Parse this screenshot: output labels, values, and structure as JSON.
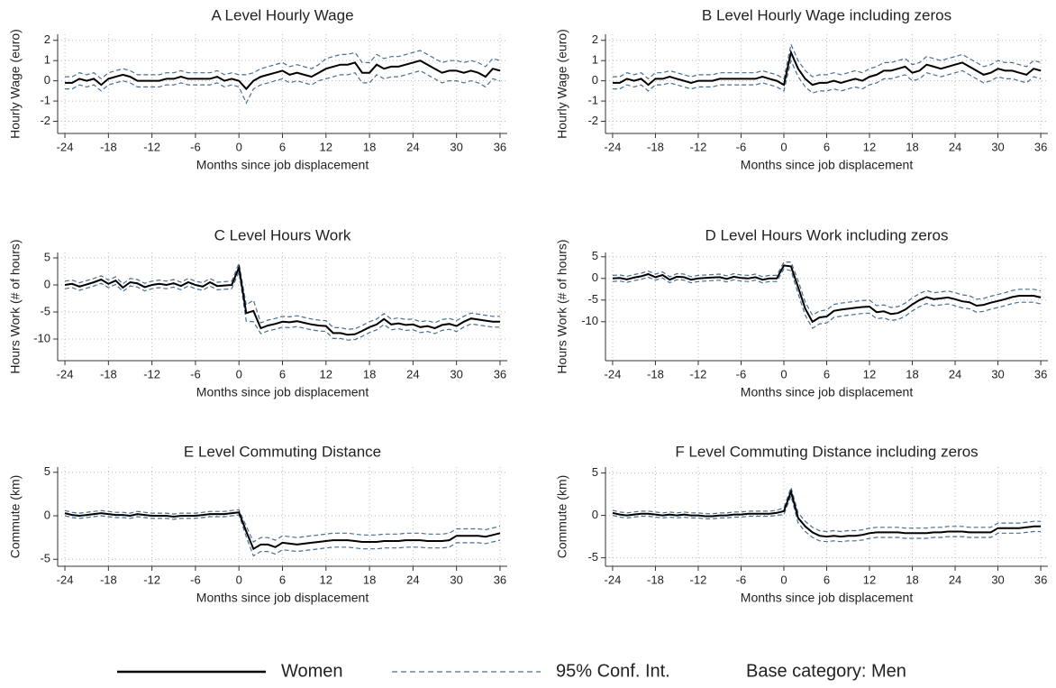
{
  "chart_data": [
    {
      "type": "line",
      "title": "A Level Hourly Wage",
      "xlabel": "Months since job displacement",
      "ylabel": "Hourly Wage (euro)",
      "x": [
        -24,
        -23,
        -22,
        -21,
        -20,
        -19,
        -18,
        -17,
        -16,
        -15,
        -14,
        -13,
        -12,
        -11,
        -10,
        -9,
        -8,
        -7,
        -6,
        -5,
        -4,
        -3,
        -2,
        -1,
        0,
        1,
        2,
        3,
        4,
        5,
        6,
        7,
        8,
        9,
        10,
        11,
        12,
        13,
        14,
        15,
        16,
        17,
        18,
        19,
        20,
        21,
        22,
        23,
        24,
        25,
        26,
        27,
        28,
        29,
        30,
        31,
        32,
        33,
        34,
        35,
        36
      ],
      "values": [
        -0.1,
        -0.1,
        0.1,
        0.0,
        0.1,
        -0.2,
        0.1,
        0.2,
        0.3,
        0.2,
        0.0,
        0.0,
        0.0,
        0.0,
        0.1,
        0.1,
        0.2,
        0.1,
        0.1,
        0.1,
        0.1,
        0.2,
        0.0,
        0.1,
        0.0,
        -0.4,
        0.0,
        0.2,
        0.3,
        0.4,
        0.5,
        0.3,
        0.4,
        0.3,
        0.2,
        0.4,
        0.6,
        0.7,
        0.8,
        0.8,
        0.9,
        0.4,
        0.4,
        0.8,
        0.6,
        0.7,
        0.7,
        0.8,
        0.9,
        1.0,
        0.8,
        0.6,
        0.4,
        0.5,
        0.5,
        0.4,
        0.5,
        0.4,
        0.2,
        0.6,
        0.5
      ],
      "ci": [
        0.3,
        0.3,
        0.3,
        0.3,
        0.3,
        0.3,
        0.3,
        0.3,
        0.3,
        0.3,
        0.3,
        0.3,
        0.3,
        0.3,
        0.3,
        0.3,
        0.3,
        0.3,
        0.3,
        0.3,
        0.3,
        0.3,
        0.3,
        0.3,
        0.3,
        0.7,
        0.4,
        0.4,
        0.4,
        0.4,
        0.4,
        0.4,
        0.4,
        0.4,
        0.4,
        0.4,
        0.5,
        0.5,
        0.5,
        0.5,
        0.5,
        0.5,
        0.5,
        0.5,
        0.5,
        0.5,
        0.5,
        0.5,
        0.5,
        0.5,
        0.5,
        0.5,
        0.5,
        0.5,
        0.5,
        0.5,
        0.5,
        0.5,
        0.5,
        0.5,
        0.5
      ],
      "xlim": [
        -25,
        37
      ],
      "ylim": [
        -2.6,
        2.3
      ],
      "xticks": [
        -24,
        -18,
        -12,
        -6,
        0,
        6,
        12,
        18,
        24,
        30,
        36
      ],
      "yticks": [
        2,
        1,
        0,
        -1,
        -2
      ],
      "grid": true
    },
    {
      "type": "line",
      "title": "B Level Hourly Wage including zeros",
      "xlabel": "Months since job displacement",
      "ylabel": "Hourly Wage (euro)",
      "x": [
        -24,
        -23,
        -22,
        -21,
        -20,
        -19,
        -18,
        -17,
        -16,
        -15,
        -14,
        -13,
        -12,
        -11,
        -10,
        -9,
        -8,
        -7,
        -6,
        -5,
        -4,
        -3,
        -2,
        -1,
        0,
        1,
        2,
        3,
        4,
        5,
        6,
        7,
        8,
        9,
        10,
        11,
        12,
        13,
        14,
        15,
        16,
        17,
        18,
        19,
        20,
        21,
        22,
        23,
        24,
        25,
        26,
        27,
        28,
        29,
        30,
        31,
        32,
        33,
        34,
        35,
        36
      ],
      "values": [
        -0.1,
        -0.1,
        0.1,
        0.0,
        0.1,
        -0.2,
        0.1,
        0.1,
        0.2,
        0.1,
        0.0,
        -0.1,
        0.0,
        0.0,
        0.0,
        0.1,
        0.1,
        0.1,
        0.1,
        0.1,
        0.1,
        0.2,
        0.1,
        0.0,
        -0.2,
        1.4,
        0.6,
        0.1,
        -0.2,
        -0.1,
        -0.1,
        0.0,
        -0.1,
        0.0,
        0.1,
        0.0,
        0.2,
        0.3,
        0.5,
        0.5,
        0.6,
        0.7,
        0.4,
        0.5,
        0.8,
        0.7,
        0.6,
        0.7,
        0.8,
        0.9,
        0.7,
        0.5,
        0.3,
        0.4,
        0.6,
        0.5,
        0.5,
        0.4,
        0.3,
        0.6,
        0.5
      ],
      "ci": [
        0.3,
        0.3,
        0.3,
        0.3,
        0.3,
        0.3,
        0.3,
        0.3,
        0.3,
        0.3,
        0.3,
        0.3,
        0.3,
        0.3,
        0.3,
        0.3,
        0.3,
        0.3,
        0.3,
        0.3,
        0.3,
        0.3,
        0.3,
        0.3,
        0.3,
        0.4,
        0.4,
        0.4,
        0.4,
        0.4,
        0.4,
        0.4,
        0.4,
        0.4,
        0.4,
        0.4,
        0.4,
        0.4,
        0.4,
        0.4,
        0.4,
        0.4,
        0.4,
        0.4,
        0.4,
        0.4,
        0.4,
        0.4,
        0.4,
        0.4,
        0.4,
        0.4,
        0.4,
        0.4,
        0.4,
        0.4,
        0.4,
        0.4,
        0.4,
        0.4,
        0.4
      ],
      "xlim": [
        -25,
        37
      ],
      "ylim": [
        -2.6,
        2.3
      ],
      "xticks": [
        -24,
        -18,
        -12,
        -6,
        0,
        6,
        12,
        18,
        24,
        30,
        36
      ],
      "yticks": [
        2,
        1,
        0,
        -1,
        -2
      ],
      "grid": true
    },
    {
      "type": "line",
      "title": "C Level Hours Work",
      "xlabel": "Months since job displacement",
      "ylabel": "Hours Work (# of hours)",
      "x": [
        -24,
        -23,
        -22,
        -21,
        -20,
        -19,
        -18,
        -17,
        -16,
        -15,
        -14,
        -13,
        -12,
        -11,
        -10,
        -9,
        -8,
        -7,
        -6,
        -5,
        -4,
        -3,
        -2,
        -1,
        0,
        1,
        2,
        3,
        4,
        5,
        6,
        7,
        8,
        9,
        10,
        11,
        12,
        13,
        14,
        15,
        16,
        17,
        18,
        19,
        20,
        21,
        22,
        23,
        24,
        25,
        26,
        27,
        28,
        29,
        30,
        31,
        32,
        33,
        34,
        35,
        36
      ],
      "values": [
        0.0,
        0.2,
        -0.3,
        0.1,
        0.5,
        1.0,
        0.2,
        0.8,
        -0.5,
        0.5,
        0.3,
        -0.4,
        0.0,
        0.2,
        0.0,
        0.3,
        -0.2,
        0.5,
        0.0,
        -0.3,
        0.5,
        -0.2,
        -0.1,
        0.0,
        3.2,
        -5.2,
        -4.8,
        -8.0,
        -7.5,
        -7.2,
        -6.8,
        -6.9,
        -6.7,
        -7.0,
        -7.3,
        -7.5,
        -7.6,
        -8.9,
        -8.9,
        -9.2,
        -9.1,
        -8.5,
        -7.8,
        -7.3,
        -6.3,
        -7.3,
        -7.1,
        -7.4,
        -7.3,
        -7.8,
        -7.6,
        -8.0,
        -7.4,
        -7.2,
        -7.6,
        -6.8,
        -6.2,
        -6.4,
        -6.6,
        -6.8,
        -6.8
      ],
      "ci": [
        0.7,
        0.7,
        0.7,
        0.7,
        0.7,
        0.7,
        0.7,
        0.7,
        0.7,
        0.7,
        0.7,
        0.7,
        0.7,
        0.7,
        0.7,
        0.7,
        0.7,
        0.7,
        0.7,
        0.7,
        0.7,
        0.7,
        0.7,
        0.7,
        0.8,
        1.5,
        2.0,
        1.0,
        1.0,
        1.0,
        1.0,
        1.0,
        1.0,
        1.0,
        1.0,
        1.0,
        1.0,
        1.0,
        1.0,
        1.0,
        1.0,
        1.0,
        1.0,
        1.0,
        1.0,
        1.0,
        1.0,
        1.0,
        1.0,
        1.0,
        1.0,
        1.0,
        1.0,
        1.0,
        1.0,
        1.0,
        1.0,
        1.0,
        1.0,
        1.0,
        1.0
      ],
      "xlim": [
        -25,
        37
      ],
      "ylim": [
        -14,
        6
      ],
      "xticks": [
        -24,
        -18,
        -12,
        -6,
        0,
        6,
        12,
        18,
        24,
        30,
        36
      ],
      "yticks": [
        5,
        0,
        -5,
        -10
      ],
      "grid": true
    },
    {
      "type": "line",
      "title": "D Level Hours Work including zeros",
      "xlabel": "Months since job displacement",
      "ylabel": "Hours Work (# of hours)",
      "x": [
        -24,
        -23,
        -22,
        -21,
        -20,
        -19,
        -18,
        -17,
        -16,
        -15,
        -14,
        -13,
        -12,
        -11,
        -10,
        -9,
        -8,
        -7,
        -6,
        -5,
        -4,
        -3,
        -2,
        -1,
        0,
        1,
        2,
        3,
        4,
        5,
        6,
        7,
        8,
        9,
        10,
        11,
        12,
        13,
        14,
        15,
        16,
        17,
        18,
        19,
        20,
        21,
        22,
        23,
        24,
        25,
        26,
        27,
        28,
        29,
        30,
        31,
        32,
        33,
        34,
        35,
        36
      ],
      "values": [
        0.0,
        0.1,
        -0.2,
        0.2,
        0.5,
        1.0,
        0.3,
        0.8,
        -0.3,
        0.4,
        0.3,
        -0.3,
        0.0,
        0.1,
        0.2,
        0.3,
        -0.1,
        0.4,
        0.1,
        0.0,
        0.3,
        -0.3,
        0.0,
        0.0,
        3.0,
        2.8,
        -2.0,
        -7.0,
        -10.0,
        -9.0,
        -8.8,
        -7.5,
        -7.2,
        -7.0,
        -6.8,
        -6.6,
        -6.5,
        -7.8,
        -7.6,
        -8.2,
        -8.0,
        -7.2,
        -6.0,
        -5.0,
        -4.3,
        -4.8,
        -4.6,
        -4.4,
        -4.8,
        -5.3,
        -5.5,
        -6.3,
        -6.1,
        -5.6,
        -5.2,
        -4.8,
        -4.3,
        -4.0,
        -4.0,
        -4.0,
        -4.4
      ],
      "ci": [
        0.7,
        0.7,
        0.7,
        0.7,
        0.7,
        0.7,
        0.7,
        0.7,
        0.7,
        0.7,
        0.7,
        0.7,
        0.7,
        0.7,
        0.7,
        0.7,
        0.7,
        0.7,
        0.7,
        0.7,
        0.7,
        0.7,
        0.7,
        0.7,
        0.8,
        1.0,
        1.5,
        1.5,
        1.5,
        1.5,
        1.5,
        1.5,
        1.5,
        1.5,
        1.5,
        1.5,
        1.5,
        1.5,
        1.5,
        1.5,
        1.5,
        1.5,
        1.5,
        1.5,
        1.5,
        1.5,
        1.5,
        1.5,
        1.5,
        1.5,
        1.5,
        1.5,
        1.5,
        1.5,
        1.5,
        1.5,
        1.5,
        1.5,
        1.5,
        1.5,
        1.5
      ],
      "xlim": [
        -25,
        37
      ],
      "ylim": [
        -19,
        6
      ],
      "xticks": [
        -24,
        -18,
        -12,
        -6,
        0,
        6,
        12,
        18,
        24,
        30,
        36
      ],
      "yticks": [
        5,
        0,
        -5,
        -10
      ],
      "grid": true
    },
    {
      "type": "line",
      "title": "E Level Commuting Distance",
      "xlabel": "Months since job displacement",
      "ylabel": "Commute (km)",
      "x": [
        -24,
        -23,
        -22,
        -21,
        -20,
        -19,
        -18,
        -17,
        -16,
        -15,
        -14,
        -13,
        -12,
        -11,
        -10,
        -9,
        -8,
        -7,
        -6,
        -5,
        -4,
        -3,
        -2,
        -1,
        0,
        1,
        2,
        3,
        4,
        5,
        6,
        7,
        8,
        9,
        10,
        11,
        12,
        13,
        14,
        15,
        16,
        17,
        18,
        19,
        20,
        21,
        22,
        23,
        24,
        25,
        26,
        27,
        28,
        29,
        30,
        31,
        32,
        33,
        34,
        35,
        36
      ],
      "values": [
        0.3,
        0.1,
        0.0,
        0.1,
        0.2,
        0.3,
        0.2,
        0.1,
        0.1,
        0.0,
        0.2,
        0.1,
        0.0,
        0.0,
        0.0,
        -0.1,
        0.0,
        0.0,
        0.0,
        0.1,
        0.2,
        0.2,
        0.2,
        0.3,
        0.4,
        -1.8,
        -3.8,
        -3.3,
        -3.3,
        -3.6,
        -3.1,
        -3.2,
        -3.3,
        -3.2,
        -3.1,
        -3.0,
        -2.9,
        -2.8,
        -2.8,
        -2.8,
        -2.9,
        -3.0,
        -3.0,
        -3.0,
        -2.9,
        -2.9,
        -2.9,
        -2.8,
        -2.8,
        -2.8,
        -2.9,
        -2.9,
        -2.9,
        -2.8,
        -2.3,
        -2.3,
        -2.3,
        -2.3,
        -2.4,
        -2.2,
        -2.0
      ],
      "ci": [
        0.3,
        0.3,
        0.3,
        0.3,
        0.3,
        0.3,
        0.3,
        0.3,
        0.3,
        0.3,
        0.3,
        0.3,
        0.3,
        0.3,
        0.3,
        0.3,
        0.3,
        0.3,
        0.3,
        0.3,
        0.3,
        0.3,
        0.3,
        0.3,
        0.3,
        0.6,
        0.8,
        0.8,
        0.8,
        0.8,
        0.8,
        0.8,
        0.8,
        0.8,
        0.8,
        0.8,
        0.8,
        0.8,
        0.8,
        0.8,
        0.8,
        0.8,
        0.8,
        0.8,
        0.8,
        0.8,
        0.8,
        0.8,
        0.8,
        0.8,
        0.8,
        0.8,
        0.8,
        0.8,
        0.8,
        0.8,
        0.8,
        0.8,
        0.8,
        0.8,
        0.8
      ],
      "xlim": [
        -25,
        37
      ],
      "ylim": [
        -5.8,
        5.6
      ],
      "xticks": [
        -24,
        -18,
        -12,
        -6,
        0,
        6,
        12,
        18,
        24,
        30,
        36
      ],
      "yticks": [
        5,
        0,
        -5
      ],
      "grid": true
    },
    {
      "type": "line",
      "title": "F Level Commuting Distance including zeros",
      "xlabel": "Months since job displacement",
      "ylabel": "Commute (km)",
      "x": [
        -24,
        -23,
        -22,
        -21,
        -20,
        -19,
        -18,
        -17,
        -16,
        -15,
        -14,
        -13,
        -12,
        -11,
        -10,
        -9,
        -8,
        -7,
        -6,
        -5,
        -4,
        -3,
        -2,
        -1,
        0,
        1,
        2,
        3,
        4,
        5,
        6,
        7,
        8,
        9,
        10,
        11,
        12,
        13,
        14,
        15,
        16,
        17,
        18,
        19,
        20,
        21,
        22,
        23,
        24,
        25,
        26,
        27,
        28,
        29,
        30,
        31,
        32,
        33,
        34,
        35,
        36
      ],
      "values": [
        0.3,
        0.1,
        0.0,
        0.1,
        0.2,
        0.2,
        0.1,
        0.0,
        0.1,
        0.0,
        0.1,
        0.0,
        0.0,
        -0.1,
        -0.1,
        0.0,
        0.0,
        0.1,
        0.1,
        0.2,
        0.2,
        0.2,
        0.2,
        0.3,
        0.5,
        2.8,
        -0.3,
        -1.3,
        -2.0,
        -2.4,
        -2.5,
        -2.4,
        -2.5,
        -2.4,
        -2.4,
        -2.3,
        -2.1,
        -2.0,
        -2.0,
        -2.0,
        -2.0,
        -2.1,
        -2.1,
        -2.1,
        -2.1,
        -2.0,
        -2.0,
        -1.9,
        -1.9,
        -1.9,
        -2.0,
        -2.0,
        -2.0,
        -2.0,
        -1.5,
        -1.5,
        -1.5,
        -1.5,
        -1.4,
        -1.3,
        -1.3
      ],
      "ci": [
        0.3,
        0.3,
        0.3,
        0.3,
        0.3,
        0.3,
        0.3,
        0.3,
        0.3,
        0.3,
        0.3,
        0.3,
        0.3,
        0.3,
        0.3,
        0.3,
        0.3,
        0.3,
        0.3,
        0.3,
        0.3,
        0.3,
        0.3,
        0.3,
        0.4,
        0.5,
        0.6,
        0.6,
        0.6,
        0.6,
        0.6,
        0.6,
        0.6,
        0.6,
        0.6,
        0.6,
        0.6,
        0.6,
        0.6,
        0.6,
        0.6,
        0.6,
        0.6,
        0.6,
        0.6,
        0.6,
        0.6,
        0.6,
        0.6,
        0.6,
        0.6,
        0.6,
        0.6,
        0.6,
        0.6,
        0.6,
        0.6,
        0.6,
        0.6,
        0.6,
        0.6
      ],
      "xlim": [
        -25,
        37
      ],
      "ylim": [
        -6,
        5.7
      ],
      "xticks": [
        -24,
        -18,
        -12,
        -6,
        0,
        6,
        12,
        18,
        24,
        30,
        36
      ],
      "yticks": [
        5,
        0,
        -5
      ],
      "grid": true
    }
  ],
  "legend": {
    "series": [
      {
        "name": "Women",
        "color": "#000000"
      },
      {
        "name": "95% Conf. Int.",
        "color": "#4a6e8f"
      }
    ],
    "note": "Base category: Men"
  }
}
